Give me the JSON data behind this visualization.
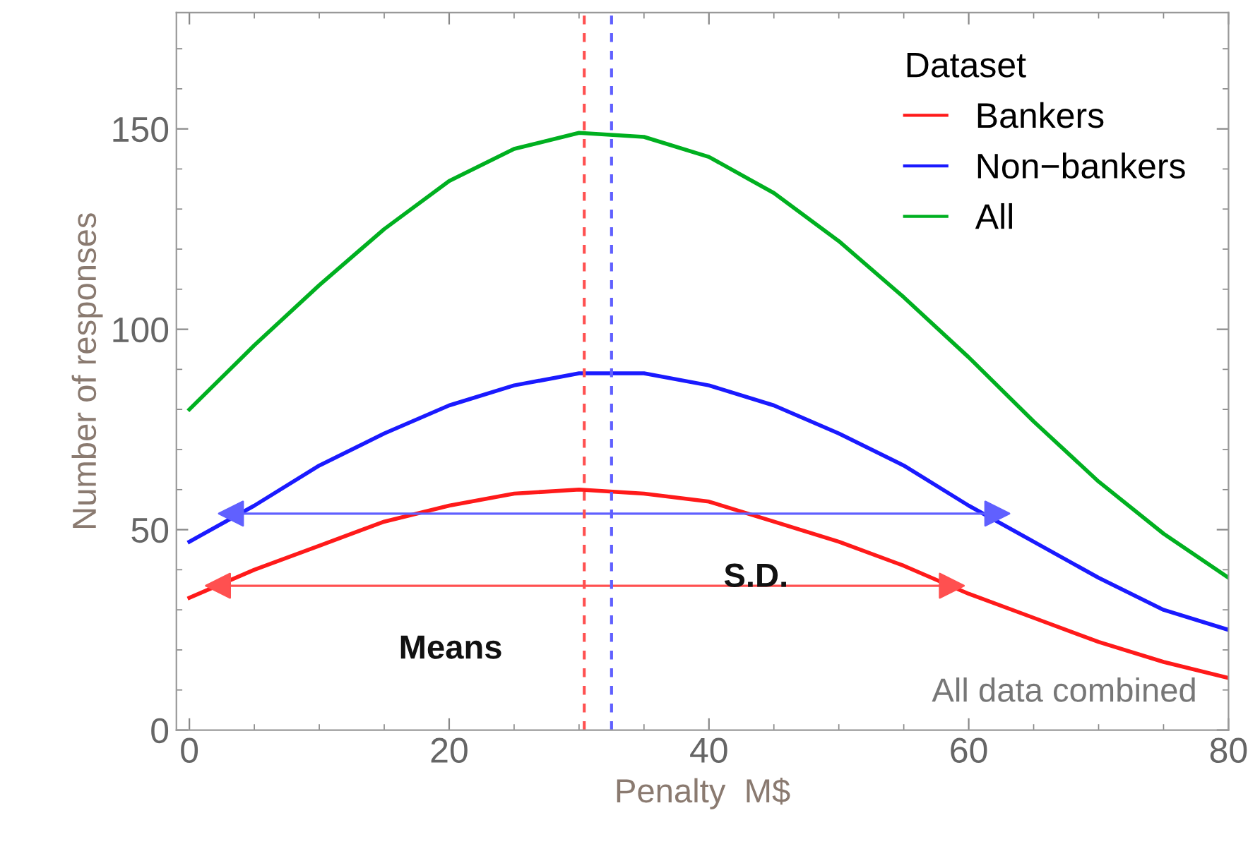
{
  "chart_data": {
    "type": "line",
    "xlabel": "Penalty  M$",
    "ylabel": "Number of responses",
    "legend_title": "Dataset",
    "legend": "top right",
    "grid": false,
    "xlim": [
      -1,
      80
    ],
    "ylim": [
      0,
      179
    ],
    "xticks": [
      0,
      20,
      40,
      60,
      80
    ],
    "yticks": [
      0,
      50,
      100,
      150
    ],
    "x": [
      0,
      5,
      10,
      15,
      20,
      25,
      30,
      35,
      40,
      45,
      50,
      55,
      60,
      65,
      70,
      75,
      80
    ],
    "series": [
      {
        "name": "Bankers",
        "color": "#ff1a1a",
        "values": [
          33,
          40,
          46,
          52,
          56,
          59,
          60,
          59,
          57,
          52,
          47,
          41,
          34,
          28,
          22,
          17,
          13
        ]
      },
      {
        "name": "Non−bankers",
        "color": "#1a1aff",
        "values": [
          47,
          56,
          66,
          74,
          81,
          86,
          89,
          89,
          86,
          81,
          74,
          66,
          56,
          47,
          38,
          30,
          25
        ]
      },
      {
        "name": "All",
        "color": "#00b020",
        "values": [
          80,
          96,
          111,
          125,
          137,
          145,
          149,
          148,
          143,
          134,
          122,
          108,
          93,
          77,
          62,
          49,
          38
        ]
      },
      {
        "type": "line",
        "marker": "triangle",
        "color": "#6060ff",
        "x": [
          3.2,
          62.2
        ],
        "values": [
          54,
          54
        ]
      },
      {
        "type": "line",
        "marker": "triangle",
        "color": "#ff5050",
        "x": [
          2.2,
          58.7
        ],
        "values": [
          36,
          36
        ]
      }
    ],
    "ref_lines": [
      {
        "axis": "x",
        "value": 30.4,
        "color": "#ff5050",
        "line_style": "dashed"
      },
      {
        "axis": "x",
        "value": 32.5,
        "color": "#6060ff",
        "line_style": "dashed"
      }
    ],
    "annotations": [
      "Means",
      "S.D.",
      "All data combined"
    ]
  }
}
